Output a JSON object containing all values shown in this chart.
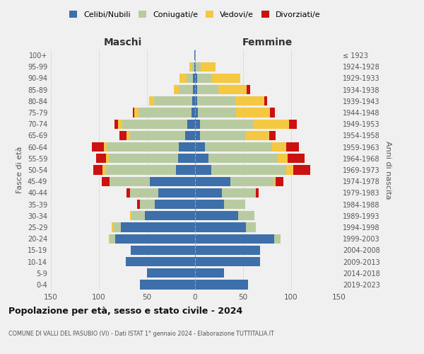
{
  "age_groups": [
    "0-4",
    "5-9",
    "10-14",
    "15-19",
    "20-24",
    "25-29",
    "30-34",
    "35-39",
    "40-44",
    "45-49",
    "50-54",
    "55-59",
    "60-64",
    "65-69",
    "70-74",
    "75-79",
    "80-84",
    "85-89",
    "90-94",
    "95-99",
    "100+"
  ],
  "birth_years": [
    "2019-2023",
    "2014-2018",
    "2009-2013",
    "2004-2008",
    "1999-2003",
    "1994-1998",
    "1989-1993",
    "1984-1988",
    "1979-1983",
    "1974-1978",
    "1969-1973",
    "1964-1968",
    "1959-1963",
    "1954-1958",
    "1949-1953",
    "1944-1948",
    "1939-1943",
    "1934-1938",
    "1929-1933",
    "1924-1928",
    "≤ 1923"
  ],
  "males": {
    "celibi": [
      57,
      50,
      72,
      67,
      83,
      77,
      52,
      42,
      38,
      47,
      20,
      18,
      17,
      10,
      8,
      4,
      3,
      2,
      2,
      1,
      1
    ],
    "coniugati": [
      0,
      0,
      0,
      0,
      5,
      8,
      14,
      15,
      30,
      42,
      73,
      72,
      75,
      58,
      68,
      55,
      40,
      15,
      7,
      2,
      0
    ],
    "vedovi": [
      0,
      0,
      0,
      0,
      2,
      2,
      2,
      0,
      0,
      0,
      3,
      3,
      3,
      3,
      4,
      4,
      5,
      5,
      7,
      3,
      0
    ],
    "divorziati": [
      0,
      0,
      0,
      0,
      0,
      0,
      0,
      3,
      3,
      8,
      10,
      10,
      12,
      8,
      4,
      2,
      0,
      0,
      0,
      0,
      0
    ]
  },
  "females": {
    "nubili": [
      55,
      30,
      68,
      68,
      82,
      53,
      45,
      30,
      28,
      37,
      17,
      14,
      10,
      5,
      5,
      3,
      2,
      2,
      2,
      1,
      0
    ],
    "coniugate": [
      0,
      0,
      0,
      0,
      7,
      10,
      17,
      22,
      35,
      45,
      78,
      72,
      70,
      47,
      55,
      40,
      40,
      22,
      15,
      5,
      0
    ],
    "vedove": [
      0,
      0,
      0,
      0,
      0,
      0,
      0,
      0,
      0,
      2,
      7,
      10,
      15,
      25,
      38,
      35,
      30,
      30,
      30,
      15,
      1
    ],
    "divorziate": [
      0,
      0,
      0,
      0,
      0,
      0,
      0,
      0,
      3,
      8,
      18,
      18,
      13,
      7,
      8,
      5,
      3,
      3,
      0,
      0,
      0
    ]
  },
  "colors": {
    "celibi": "#3d6faa",
    "coniugati": "#b8cba0",
    "vedovi": "#f5c842",
    "divorziati": "#cc1111"
  },
  "title": "Popolazione per età, sesso e stato civile - 2024",
  "subtitle": "COMUNE DI VALLI DEL PASUBIO (VI) - Dati ISTAT 1° gennaio 2024 - Elaborazione TUTTITALIA.IT",
  "xlabel_left": "Maschi",
  "xlabel_right": "Femmine",
  "ylabel_left": "Fasce di età",
  "ylabel_right": "Anni di nascita",
  "xlim": 150,
  "legend_labels": [
    "Celibi/Nubili",
    "Coniugati/e",
    "Vedovi/e",
    "Divorziati/e"
  ],
  "bg_color": "#f0f0f0",
  "grid_color": "#cccccc"
}
